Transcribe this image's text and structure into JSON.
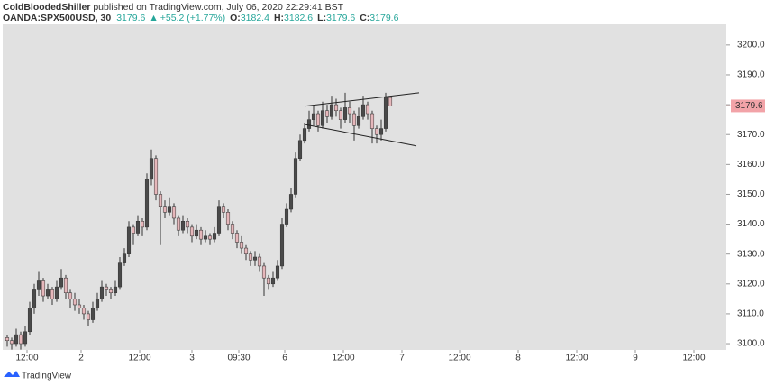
{
  "header": {
    "author": "ColdBloodedShiller",
    "published": "published on TradingView.com, July 06, 2020 22:29:41 BST"
  },
  "legend": {
    "symbol": "OANDA:SPX500USD, 30",
    "last": "3179.6",
    "change": "+55.2 (+1.77%)",
    "ohlc": [
      {
        "key": "O:",
        "value": "3182.4"
      },
      {
        "key": "H:",
        "value": "3182.6"
      },
      {
        "key": "L:",
        "value": "3179.6"
      },
      {
        "key": "C:",
        "value": "3179.6"
      }
    ]
  },
  "footer": {
    "brand": "TradingView"
  },
  "chart_data": {
    "type": "candlestick",
    "up_color": "#4a4a4a",
    "down_color": "#e6b7bb",
    "wick_color": "#333333",
    "background": "#e1e1e1",
    "xlim": [
      0,
      160.6
    ],
    "xticks": [
      {
        "value": 5.4,
        "label": "12:00"
      },
      {
        "value": 17.4,
        "label": "2"
      },
      {
        "value": 30.4,
        "label": "12:00"
      },
      {
        "value": 42,
        "label": "3"
      },
      {
        "value": 52.4,
        "label": "09:30"
      },
      {
        "value": 62.6,
        "label": "6"
      },
      {
        "value": 75.6,
        "label": "12:00"
      },
      {
        "value": 88.6,
        "label": "7"
      },
      {
        "value": 101.4,
        "label": "12:00"
      },
      {
        "value": 114.4,
        "label": "8"
      },
      {
        "value": 127.4,
        "label": "12:00"
      },
      {
        "value": 140.4,
        "label": "9"
      },
      {
        "value": 153.4,
        "label": "12:00"
      }
    ],
    "ylim": [
      3097.9,
      3206.9
    ],
    "yticks": [
      {
        "value": 3100,
        "label": "3100.0"
      },
      {
        "value": 3110,
        "label": "3110.0"
      },
      {
        "value": 3120,
        "label": "3120.0"
      },
      {
        "value": 3130,
        "label": "3130.0"
      },
      {
        "value": 3140,
        "label": "3140.0"
      },
      {
        "value": 3150,
        "label": "3150.0"
      },
      {
        "value": 3160,
        "label": "3160.0"
      },
      {
        "value": 3170,
        "label": "3170.0"
      },
      {
        "value": 3180,
        "label": "3180.0"
      },
      {
        "value": 3190,
        "label": "3190.0"
      },
      {
        "value": 3200,
        "label": "3200.0"
      }
    ],
    "price_label": {
      "value": 3179.6,
      "label": "3179.6",
      "color": "#f2a3a8"
    },
    "trendlines": [
      {
        "x": [
          67,
          92.4
        ],
        "y": [
          3179.5,
          3184
        ]
      },
      {
        "x": [
          67,
          91.8
        ],
        "y": [
          3173.4,
          3166.2
        ]
      }
    ],
    "candles": [
      [
        3102,
        3103,
        3099,
        3101
      ],
      [
        3101,
        3102,
        3098,
        3100
      ],
      [
        3100,
        3105,
        3099,
        3103
      ],
      [
        3103,
        3104,
        3098,
        3100
      ],
      [
        3100,
        3106,
        3099,
        3104
      ],
      [
        3104,
        3114,
        3103,
        3112
      ],
      [
        3112,
        3120,
        3110,
        3118
      ],
      [
        3118,
        3124,
        3116,
        3121
      ],
      [
        3121,
        3122,
        3114,
        3116
      ],
      [
        3116,
        3120,
        3115,
        3118
      ],
      [
        3118,
        3119,
        3113,
        3115
      ],
      [
        3115,
        3121,
        3114,
        3119
      ],
      [
        3119,
        3125,
        3118,
        3122
      ],
      [
        3122,
        3123,
        3115,
        3117
      ],
      [
        3117,
        3118,
        3112,
        3115
      ],
      [
        3115,
        3117,
        3111,
        3113
      ],
      [
        3113,
        3115,
        3110,
        3112
      ],
      [
        3112,
        3113,
        3108,
        3110
      ],
      [
        3110,
        3111,
        3106,
        3108
      ],
      [
        3108,
        3114,
        3107,
        3112
      ],
      [
        3112,
        3117,
        3111,
        3115
      ],
      [
        3115,
        3121,
        3114,
        3119
      ],
      [
        3119,
        3120,
        3116,
        3118
      ],
      [
        3118,
        3119,
        3115,
        3117
      ],
      [
        3117,
        3121,
        3116,
        3119
      ],
      [
        3119,
        3129,
        3118,
        3127
      ],
      [
        3127,
        3132,
        3126,
        3130
      ],
      [
        3130,
        3141,
        3129,
        3139
      ],
      [
        3139,
        3140,
        3133,
        3137
      ],
      [
        3137,
        3143,
        3136,
        3141
      ],
      [
        3141,
        3142,
        3136,
        3139
      ],
      [
        3139,
        3157,
        3138,
        3155
      ],
      [
        3155,
        3165,
        3153,
        3162
      ],
      [
        3162,
        3163,
        3148,
        3150
      ],
      [
        3150,
        3151,
        3133,
        3146
      ],
      [
        3146,
        3148,
        3142,
        3144
      ],
      [
        3144,
        3149,
        3143,
        3146
      ],
      [
        3146,
        3147,
        3140,
        3142
      ],
      [
        3142,
        3143,
        3136,
        3138
      ],
      [
        3138,
        3143,
        3137,
        3141
      ],
      [
        3141,
        3142,
        3137,
        3139
      ],
      [
        3139,
        3140,
        3134,
        3136
      ],
      [
        3136,
        3140,
        3135,
        3138
      ],
      [
        3138,
        3139,
        3133,
        3135
      ],
      [
        3135,
        3138,
        3134,
        3136
      ],
      [
        3136,
        3137,
        3133,
        3135
      ],
      [
        3135,
        3139,
        3134,
        3137
      ],
      [
        3137,
        3148,
        3136,
        3146
      ],
      [
        3146,
        3147,
        3142,
        3144
      ],
      [
        3144,
        3145,
        3138,
        3140
      ],
      [
        3140,
        3141,
        3135,
        3137
      ],
      [
        3137,
        3138,
        3132,
        3134
      ],
      [
        3134,
        3136,
        3130,
        3132
      ],
      [
        3132,
        3133,
        3128,
        3130
      ],
      [
        3130,
        3131,
        3126,
        3128
      ],
      [
        3128,
        3131,
        3126,
        3129
      ],
      [
        3129,
        3130,
        3124,
        3126
      ],
      [
        3126,
        3127,
        3116,
        3122
      ],
      [
        3122,
        3123,
        3118,
        3120
      ],
      [
        3120,
        3124,
        3119,
        3122
      ],
      [
        3122,
        3128,
        3121,
        3126
      ],
      [
        3126,
        3142,
        3125,
        3140
      ],
      [
        3140,
        3147,
        3139,
        3145
      ],
      [
        3145,
        3152,
        3144,
        3150
      ],
      [
        3150,
        3164,
        3149,
        3162
      ],
      [
        3162,
        3170,
        3161,
        3168
      ],
      [
        3168,
        3174,
        3167,
        3172
      ],
      [
        3172,
        3178,
        3171,
        3175
      ],
      [
        3175,
        3180,
        3173,
        3177
      ],
      [
        3177,
        3178,
        3171,
        3173
      ],
      [
        3173,
        3181,
        3172,
        3178
      ],
      [
        3178,
        3180,
        3174,
        3176
      ],
      [
        3176,
        3183,
        3175,
        3180
      ],
      [
        3180,
        3182,
        3176,
        3178
      ],
      [
        3178,
        3179,
        3172,
        3175
      ],
      [
        3175,
        3184,
        3174,
        3179
      ],
      [
        3179,
        3181,
        3174,
        3177
      ],
      [
        3177,
        3178,
        3168,
        3173
      ],
      [
        3173,
        3179,
        3172,
        3176
      ],
      [
        3176,
        3183,
        3175,
        3180
      ],
      [
        3180,
        3181,
        3175,
        3177
      ],
      [
        3177,
        3178,
        3167,
        3172
      ],
      [
        3172,
        3173,
        3167,
        3170
      ],
      [
        3170,
        3175,
        3168,
        3172
      ],
      [
        3172,
        3184,
        3171,
        3182.4
      ],
      [
        3182.4,
        3182.6,
        3179.6,
        3179.6
      ]
    ]
  }
}
